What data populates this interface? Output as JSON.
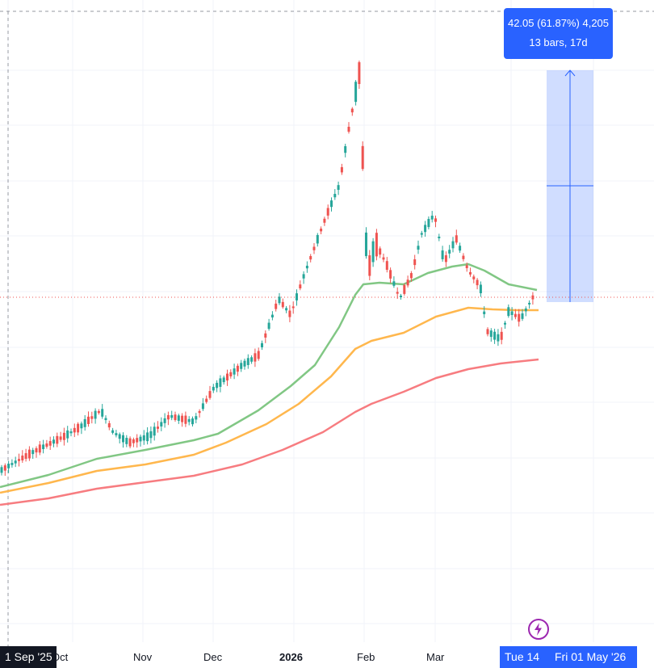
{
  "chart_data": {
    "type": "candlestick",
    "x_axis_labels": [
      {
        "text": "Oct"
      },
      {
        "text": "Nov"
      },
      {
        "text": "Dec"
      },
      {
        "text": "2026",
        "bold": true
      },
      {
        "text": "Feb"
      },
      {
        "text": "Mar"
      }
    ],
    "cursor_labels": {
      "start": "1 Sep '25",
      "measure_start": "Tue 14",
      "measure_end": "Fri 01 May '26"
    },
    "measure_tooltip": {
      "line1": "42.05 (61.87%) 4,205",
      "line2": "13 bars, 17d"
    },
    "moving_averages": [
      {
        "color": "#81c784"
      },
      {
        "color": "#ffb74d"
      },
      {
        "color": "#f77c80"
      }
    ],
    "colors": {
      "up": "#26a69a",
      "down": "#ef5350",
      "measure": "#2962ff",
      "price_line": "#ef5350"
    },
    "grid": true,
    "icons": {
      "flash": "lightning-icon"
    }
  }
}
